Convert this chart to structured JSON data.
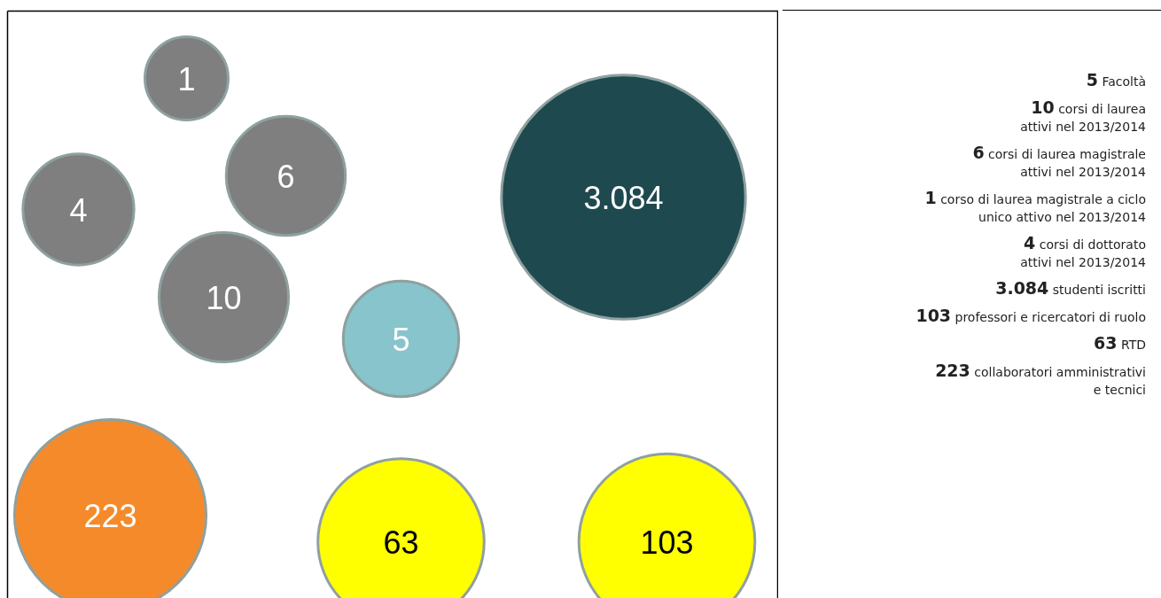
{
  "chart_data": {
    "type": "other",
    "categories": [
      "Facoltà",
      "corsi di laurea\nattivi nel 2013/2014",
      "corsi di laurea magistrale\nattivi nel 2013/2014",
      "corso di laurea magistrale a ciclo\nunico attivo nel 2013/2014",
      "corsi di dottorato\nattivi nel 2013/2014",
      "studenti iscritti",
      "professori e ricercatori di ruolo",
      "RTD",
      "collaboratori amministrativi\ne tecnici"
    ],
    "values": [
      5,
      10,
      6,
      1,
      4,
      3084,
      103,
      63,
      223
    ],
    "value_labels": [
      "5",
      "10",
      "6",
      "1",
      "4",
      "3.084",
      "103",
      "63",
      "223"
    ],
    "colors": [
      "#87c4cc",
      "#7f7f7f",
      "#7f7f7f",
      "#7f7f7f",
      "#7f7f7f",
      "#1e4a4f",
      "#ffff00",
      "#ffff00",
      "#f58a2b"
    ]
  }
}
